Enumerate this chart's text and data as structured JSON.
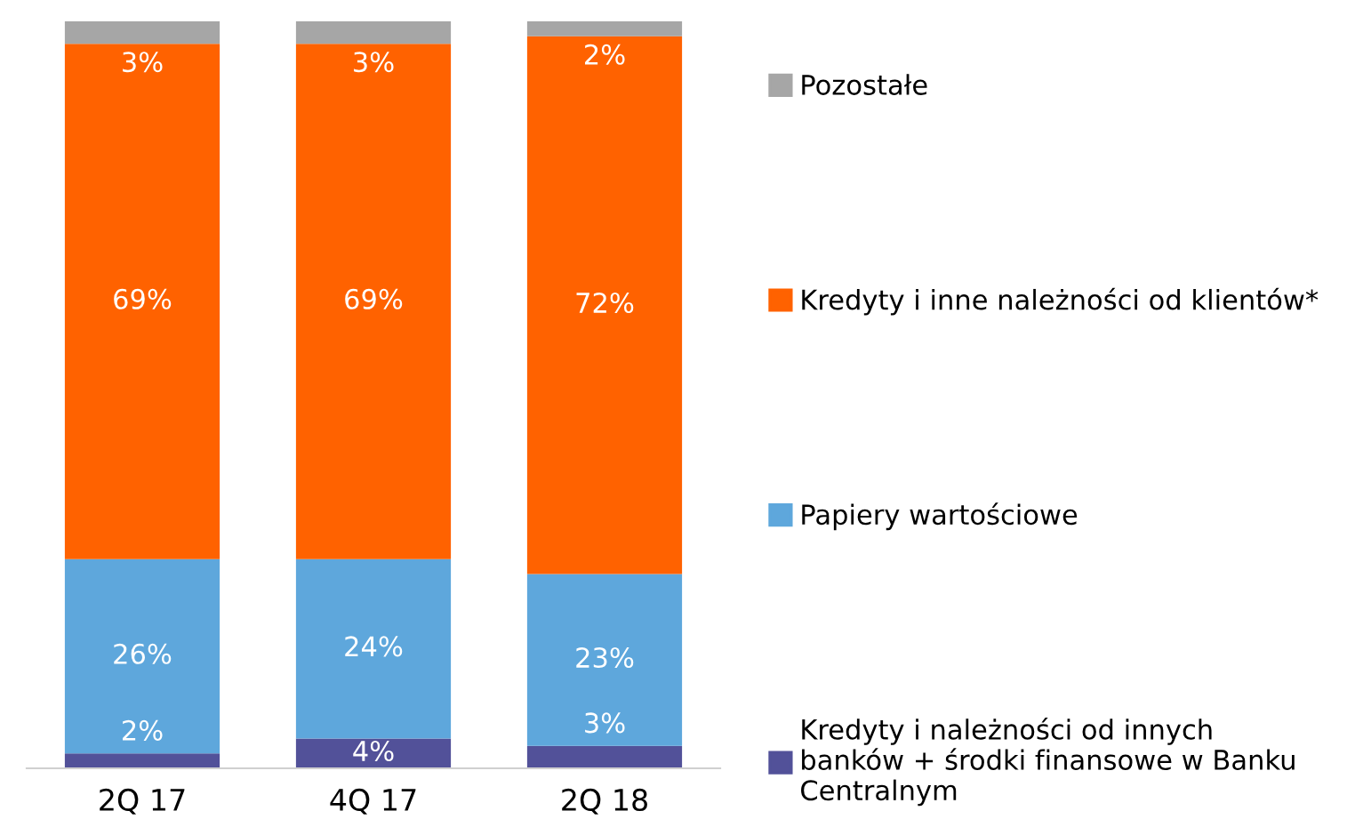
{
  "chart_data": {
    "type": "bar",
    "stacked": true,
    "legend": "right",
    "grid": false,
    "categories": [
      "2Q 17",
      "4Q 17",
      "2Q 18"
    ],
    "series": [
      {
        "name": "Kredyty i należności od innych\nbanków + środki finansowe w Banku\nCentralnym",
        "color": "#525199",
        "values": [
          2,
          4,
          3
        ],
        "value_labels": [
          "2%",
          "4%",
          "3%"
        ]
      },
      {
        "name": "Papiery wartościowe",
        "color": "#5ea7dc",
        "values": [
          26,
          24,
          23
        ],
        "value_labels": [
          "26%",
          "24%",
          "23%"
        ]
      },
      {
        "name": "Kredyty i inne należności od klientów*",
        "color": "#ff6200",
        "values": [
          69,
          69,
          72
        ],
        "value_labels": [
          "69%",
          "69%",
          "72%"
        ]
      },
      {
        "name": "Pozostałe",
        "color": "#a6a6a6",
        "values": [
          3,
          3,
          2
        ],
        "value_labels": [
          "3%",
          "3%",
          "2%"
        ]
      }
    ]
  }
}
